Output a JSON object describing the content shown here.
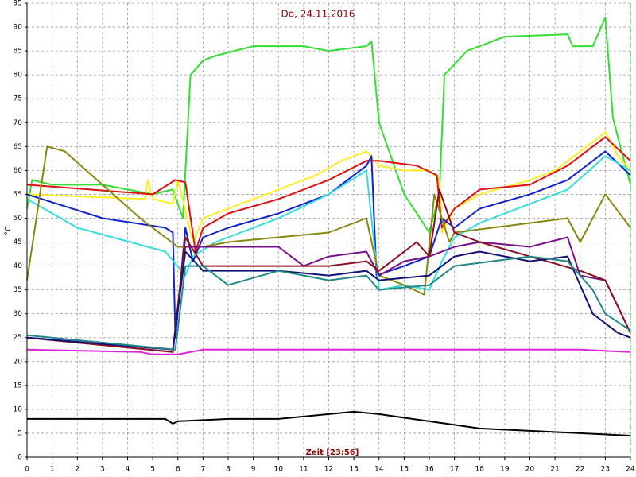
{
  "chart_data": {
    "type": "line",
    "title": "Do, 24.11.2016",
    "x_label": "Zeit [23:56]",
    "y_label": "°C",
    "xlim": [
      0,
      24
    ],
    "xticks": [
      0,
      1,
      2,
      3,
      4,
      5,
      6,
      7,
      8,
      9,
      10,
      11,
      12,
      13,
      14,
      15,
      16,
      17,
      18,
      19,
      20,
      21,
      22,
      23,
      24
    ],
    "ylim": [
      0,
      95
    ],
    "yticks": [
      0,
      5,
      10,
      15,
      20,
      25,
      30,
      35,
      40,
      45,
      50,
      55,
      60,
      65,
      70,
      75,
      80,
      85,
      90,
      95
    ],
    "grid": true,
    "series": [
      {
        "color": "#33dd33",
        "x": [
          0,
          0.2,
          1,
          3,
          5,
          5.8,
          6.2,
          6.5,
          7,
          7.5,
          9,
          11,
          12,
          13.5,
          13.7,
          14,
          15,
          16,
          16.4,
          16.6,
          17.5,
          19,
          21.5,
          21.7,
          22.5,
          23,
          23.3,
          24
        ],
        "values": [
          52,
          58,
          57,
          57,
          55,
          56,
          50,
          80,
          83,
          84,
          86,
          86,
          85,
          86,
          87,
          70,
          55,
          47,
          55,
          80,
          85,
          88,
          88.5,
          86,
          86,
          92,
          71,
          57
        ]
      },
      {
        "color": "#ffee22",
        "x": [
          0,
          4.7,
          4.8,
          5,
          5.8,
          6,
          6.6,
          7,
          9,
          10,
          11.5,
          12.5,
          13.5,
          14,
          15,
          16,
          16.4,
          16.5,
          17,
          18,
          20,
          21,
          22,
          23,
          23.5,
          24
        ],
        "values": [
          55,
          54,
          58,
          54,
          53,
          58,
          45,
          50,
          54,
          56,
          59,
          62,
          64,
          61,
          60,
          60,
          58,
          47,
          52,
          55,
          58,
          60,
          64,
          68,
          63,
          60
        ]
      },
      {
        "color": "#dd1111",
        "x": [
          0,
          5,
          5.9,
          6.3,
          6.7,
          7,
          8,
          10,
          12,
          13.5,
          14,
          15.5,
          16.3,
          16.5,
          17,
          18,
          20,
          21.5,
          23,
          24
        ],
        "values": [
          57,
          55,
          58,
          57.5,
          43,
          48,
          51,
          54,
          58,
          62,
          62,
          61,
          59,
          48,
          52,
          56,
          57,
          61,
          67,
          62
        ]
      },
      {
        "color": "#1122cc",
        "x": [
          0,
          3,
          5.5,
          5.8,
          5.9,
          6.3,
          6.6,
          7,
          8,
          10,
          12,
          13.5,
          13.7,
          13.9,
          15,
          16,
          16.5,
          17,
          18,
          20,
          21.5,
          23,
          24
        ],
        "values": [
          55,
          50,
          48,
          47,
          25,
          48,
          41,
          46,
          48,
          51,
          55,
          61,
          63,
          38,
          40,
          42,
          50,
          48,
          52,
          55,
          58,
          64,
          59
        ]
      },
      {
        "color": "#33dddd",
        "x": [
          0,
          2,
          5.5,
          6.3,
          6.6,
          7.5,
          10,
          12,
          13.5,
          14,
          15,
          16,
          16.5,
          17,
          18,
          20,
          21.5,
          23,
          24
        ],
        "values": [
          54,
          48,
          43,
          38,
          42,
          45,
          50,
          55,
          60,
          35,
          36,
          35,
          41,
          46,
          49,
          53,
          56,
          63,
          60
        ]
      },
      {
        "color": "#888811",
        "x": [
          0,
          0.8,
          1.5,
          3,
          4.5,
          5.5,
          6,
          7,
          8,
          10,
          12,
          13.5,
          14,
          15,
          15.8,
          16.2,
          16.8,
          17,
          20,
          21.5,
          22,
          23,
          24
        ],
        "values": [
          37,
          65,
          64,
          57,
          50,
          46,
          44,
          44,
          45,
          46,
          47,
          50,
          38,
          36,
          34,
          55,
          45,
          47,
          49,
          50,
          45,
          55,
          48
        ]
      },
      {
        "color": "#771188",
        "x": [
          0,
          5.8,
          6.3,
          7,
          10,
          11,
          12,
          13.5,
          14,
          15,
          16,
          17,
          18,
          20,
          21.5,
          22,
          23,
          24
        ],
        "values": [
          25,
          22,
          44,
          44,
          44,
          40,
          42,
          43,
          38,
          41,
          42,
          44,
          45,
          44,
          46,
          38,
          37,
          26
        ]
      },
      {
        "color": "#881122",
        "x": [
          0,
          5.8,
          6.3,
          7,
          10,
          12,
          13.5,
          14,
          15.5,
          16,
          16.4,
          17,
          18,
          20,
          22,
          23,
          24
        ],
        "values": [
          25,
          22,
          46,
          40,
          40,
          40,
          41,
          39,
          45,
          42,
          56,
          47,
          45,
          42,
          39,
          37,
          26
        ]
      },
      {
        "color": "#111177",
        "x": [
          0,
          5.8,
          6.3,
          7,
          10,
          12,
          13.5,
          14,
          16,
          17,
          18,
          20,
          21.5,
          22.5,
          23.5,
          24
        ],
        "values": [
          25,
          22.5,
          43,
          39,
          39,
          38,
          39,
          37,
          38,
          42,
          43,
          41,
          42,
          30,
          26,
          25
        ]
      },
      {
        "color": "#228888",
        "x": [
          0,
          5.9,
          6.3,
          7,
          8,
          10,
          12,
          13.5,
          14,
          16,
          17,
          20,
          21.5,
          22.5,
          23,
          24
        ],
        "values": [
          25.5,
          22.5,
          40,
          40,
          36,
          39,
          37,
          38,
          35,
          36,
          40,
          42,
          41,
          35,
          30,
          26.5
        ]
      },
      {
        "color": "#dd22dd",
        "x": [
          0,
          4.5,
          5,
          6,
          7,
          10,
          15,
          16,
          22,
          24
        ],
        "values": [
          22.5,
          22,
          21.5,
          21.5,
          22.5,
          22.5,
          22.5,
          22.5,
          22.5,
          22
        ]
      },
      {
        "color": "#000000",
        "x": [
          0,
          5.5,
          5.8,
          6,
          8,
          10,
          12,
          13,
          14,
          16,
          18,
          20,
          22,
          24
        ],
        "values": [
          8,
          8,
          7,
          7.5,
          8,
          8,
          9,
          9.5,
          9,
          7.5,
          6,
          5.5,
          5,
          4.5
        ]
      }
    ]
  }
}
